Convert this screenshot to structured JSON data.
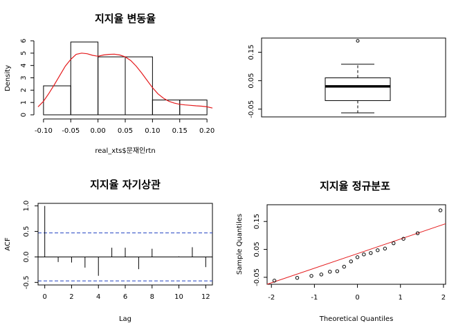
{
  "colors": {
    "axis": "#000000",
    "density_curve": "#e41a1c",
    "acf_ci_line": "#1f3fbf",
    "qq_line": "#e41a1c",
    "background": "#ffffff"
  },
  "chart_data": [
    {
      "type": "histogram",
      "title": "지지율 변동율",
      "xlabel": "real_xts$문재인rtn",
      "ylabel": "Density",
      "xlim": [
        -0.11,
        0.21
      ],
      "ylim": [
        0,
        6
      ],
      "xticks": [
        -0.1,
        -0.05,
        0.0,
        0.05,
        0.1,
        0.15,
        0.2
      ],
      "xtick_labels": [
        "-0.10",
        "-0.05",
        "0.00",
        "0.05",
        "0.10",
        "0.15",
        "0.20"
      ],
      "yticks": [
        0,
        1,
        2,
        3,
        4,
        5,
        6
      ],
      "ytick_labels": [
        "0",
        "1",
        "2",
        "3",
        "4",
        "5",
        "6"
      ],
      "bins": [
        {
          "from": -0.1,
          "to": -0.05,
          "density": 2.35
        },
        {
          "from": -0.05,
          "to": 0.0,
          "density": 5.9
        },
        {
          "from": 0.0,
          "to": 0.05,
          "density": 4.7
        },
        {
          "from": 0.05,
          "to": 0.1,
          "density": 4.7
        },
        {
          "from": 0.1,
          "to": 0.15,
          "density": 1.2
        },
        {
          "from": 0.15,
          "to": 0.2,
          "density": 1.2
        }
      ],
      "density_curve": {
        "x": [
          -0.11,
          -0.1,
          -0.09,
          -0.08,
          -0.07,
          -0.06,
          -0.05,
          -0.04,
          -0.03,
          -0.02,
          -0.01,
          0.0,
          0.01,
          0.02,
          0.03,
          0.04,
          0.05,
          0.06,
          0.07,
          0.08,
          0.09,
          0.1,
          0.11,
          0.12,
          0.13,
          0.14,
          0.15,
          0.16,
          0.17,
          0.18,
          0.19,
          0.2,
          0.21
        ],
        "y": [
          0.65,
          1.1,
          1.75,
          2.45,
          3.2,
          3.95,
          4.5,
          4.9,
          5.0,
          4.95,
          4.82,
          4.75,
          4.85,
          4.9,
          4.92,
          4.85,
          4.7,
          4.4,
          3.95,
          3.4,
          2.8,
          2.2,
          1.7,
          1.35,
          1.1,
          0.95,
          0.85,
          0.8,
          0.77,
          0.73,
          0.7,
          0.65,
          0.55
        ]
      }
    },
    {
      "type": "boxplot",
      "title": "",
      "ylim": [
        -0.07,
        0.2
      ],
      "yticks": [
        -0.05,
        0.05,
        0.15
      ],
      "ytick_labels": [
        "-0.05",
        "0.05",
        "0.15"
      ],
      "stats": {
        "whisker_low": -0.063,
        "q1": -0.02,
        "median": 0.03,
        "q3": 0.06,
        "whisker_high": 0.108
      },
      "outliers": [
        0.19
      ]
    },
    {
      "type": "acf",
      "title": "지지율 자기상관",
      "xlabel": "Lag",
      "ylabel": "ACF",
      "xlim": [
        -0.5,
        12.5
      ],
      "ylim": [
        -0.55,
        1.05
      ],
      "xticks": [
        0,
        2,
        4,
        6,
        8,
        10,
        12
      ],
      "xtick_labels": [
        "0",
        "2",
        "4",
        "6",
        "8",
        "10",
        "12"
      ],
      "yticks": [
        -0.5,
        0.0,
        0.5,
        1.0
      ],
      "ytick_labels": [
        "-0.5",
        "0.0",
        "0.5",
        "1.0"
      ],
      "lags": [
        0,
        1,
        2,
        3,
        4,
        5,
        6,
        7,
        8,
        9,
        10,
        11,
        12
      ],
      "acf": [
        1.0,
        -0.1,
        -0.11,
        -0.21,
        -0.37,
        0.18,
        0.18,
        -0.24,
        0.16,
        0.0,
        0.01,
        0.19,
        -0.2
      ],
      "ci": 0.47
    },
    {
      "type": "scatter",
      "title": "지지율 정규분포",
      "xlabel": "Theoretical Quantiles",
      "ylabel": "Sample Quantiles",
      "xlim": [
        -2.1,
        2.05
      ],
      "ylim": [
        -0.075,
        0.21
      ],
      "xticks": [
        -2,
        -1,
        0,
        1,
        2
      ],
      "xtick_labels": [
        "-2",
        "-1",
        "0",
        "1",
        "2"
      ],
      "yticks": [
        -0.05,
        0.05,
        0.15
      ],
      "ytick_labels": [
        "-0.05",
        "0.05",
        "0.15"
      ],
      "points": {
        "x": [
          -1.93,
          -1.4,
          -1.07,
          -0.84,
          -0.64,
          -0.47,
          -0.31,
          -0.15,
          0.0,
          0.15,
          0.31,
          0.47,
          0.64,
          0.84,
          1.07,
          1.4,
          1.93
        ],
        "y": [
          -0.062,
          -0.052,
          -0.045,
          -0.04,
          -0.03,
          -0.028,
          -0.012,
          0.007,
          0.022,
          0.032,
          0.037,
          0.047,
          0.053,
          0.072,
          0.088,
          0.108,
          0.19
        ]
      },
      "qq_line": {
        "x": [
          -2.1,
          2.05
        ],
        "y": [
          -0.115,
          0.142
        ]
      }
    }
  ]
}
